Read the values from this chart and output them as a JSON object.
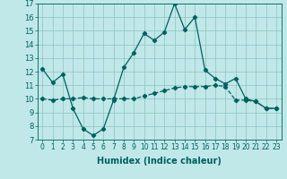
{
  "title": "",
  "xlabel": "Humidex (Indice chaleur)",
  "bg_color": "#c0e8e8",
  "line_color": "#006060",
  "grid_color": "#90c0c0",
  "ylim": [
    7,
    17
  ],
  "xlim": [
    -0.5,
    23.5
  ],
  "yticks": [
    7,
    8,
    9,
    10,
    11,
    12,
    13,
    14,
    15,
    16,
    17
  ],
  "xticks": [
    0,
    1,
    2,
    3,
    4,
    5,
    6,
    7,
    8,
    9,
    10,
    11,
    12,
    13,
    14,
    15,
    16,
    17,
    18,
    19,
    20,
    21,
    22,
    23
  ],
  "series1_x": [
    0,
    1,
    2,
    3,
    4,
    5,
    6,
    7,
    8,
    9,
    10,
    11,
    12,
    13,
    14,
    15,
    16,
    17,
    18,
    19,
    20,
    21,
    22,
    23
  ],
  "series1_y": [
    12.2,
    11.2,
    11.8,
    9.3,
    7.8,
    7.3,
    7.8,
    9.9,
    12.3,
    13.4,
    14.8,
    14.3,
    14.9,
    17.0,
    15.1,
    16.0,
    12.1,
    11.5,
    11.1,
    11.5,
    10.0,
    9.8,
    9.3,
    9.3
  ],
  "series2_x": [
    0,
    1,
    2,
    3,
    4,
    5,
    6,
    7,
    8,
    9,
    10,
    11,
    12,
    13,
    14,
    15,
    16,
    17,
    18,
    19,
    20,
    21,
    22,
    23
  ],
  "series2_y": [
    10.0,
    9.9,
    10.0,
    10.0,
    10.1,
    10.0,
    10.0,
    10.0,
    10.0,
    10.0,
    10.2,
    10.4,
    10.6,
    10.8,
    10.9,
    10.9,
    10.9,
    11.0,
    10.9,
    9.9,
    9.9,
    9.8,
    9.3,
    9.3
  ],
  "xlabel_fontsize": 7,
  "tick_fontsize": 5.5,
  "ytick_fontsize": 6
}
